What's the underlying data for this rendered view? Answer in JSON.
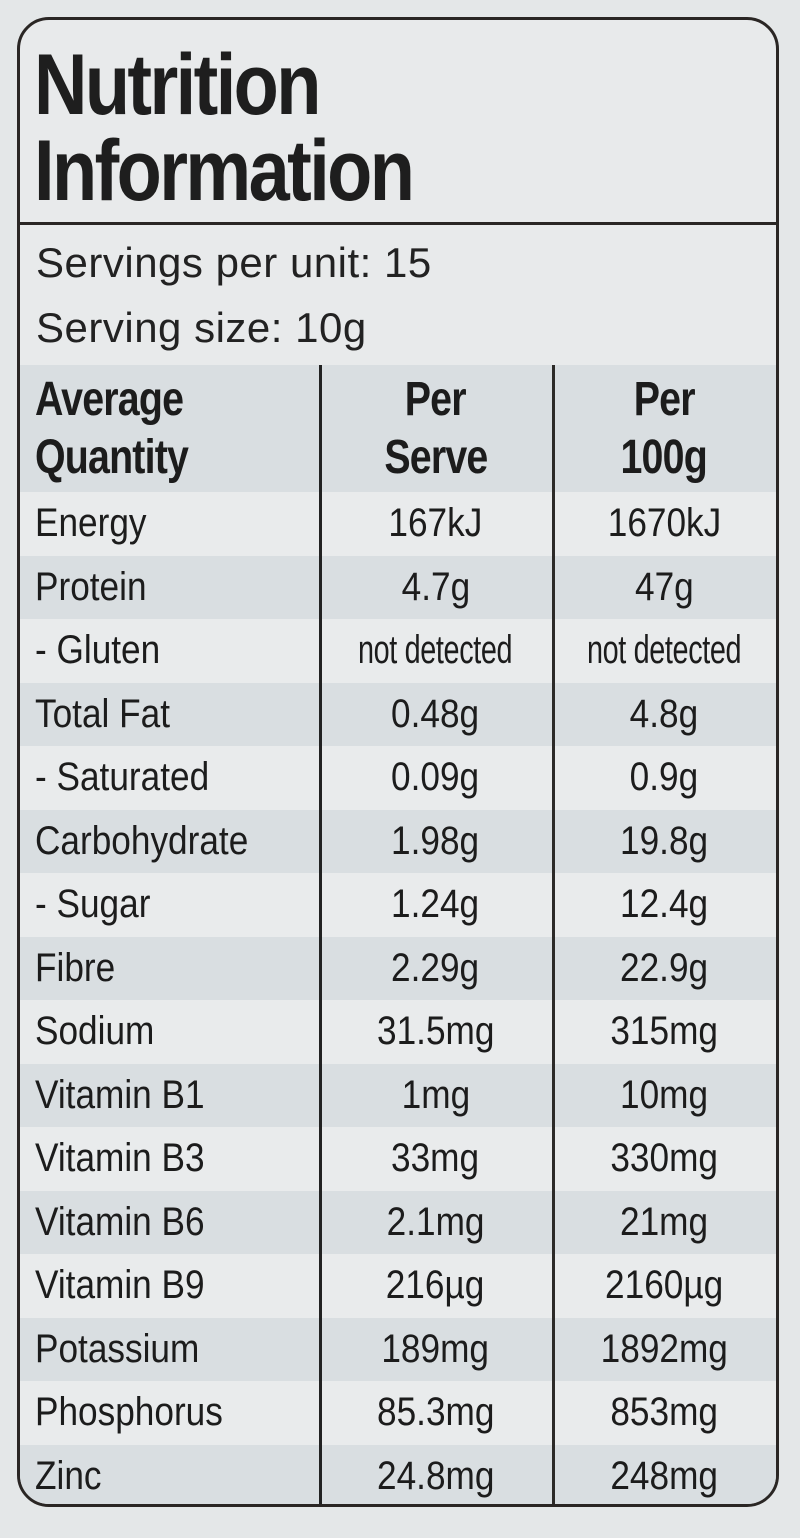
{
  "title": {
    "line1": "Nutrition",
    "line2": "Information"
  },
  "servings": {
    "per_unit": "Servings per unit: 15",
    "size": "Serving size: 10g"
  },
  "table": {
    "headers": {
      "name": [
        "Average",
        "Quantity"
      ],
      "per_serve": [
        "Per",
        "Serve"
      ],
      "per_100g": [
        "Per",
        "100g"
      ]
    },
    "rows": [
      {
        "name": "Energy",
        "per_serve": "167kJ",
        "per_100g": "1670kJ"
      },
      {
        "name": "Protein",
        "per_serve": "4.7g",
        "per_100g": "47g"
      },
      {
        "name": "- Gluten",
        "per_serve": "not detected",
        "per_100g": "not detected"
      },
      {
        "name": "Total Fat",
        "per_serve": "0.48g",
        "per_100g": "4.8g"
      },
      {
        "name": "- Saturated",
        "per_serve": "0.09g",
        "per_100g": "0.9g"
      },
      {
        "name": "Carbohydrate",
        "per_serve": "1.98g",
        "per_100g": "19.8g"
      },
      {
        "name": "- Sugar",
        "per_serve": "1.24g",
        "per_100g": "12.4g"
      },
      {
        "name": "Fibre",
        "per_serve": "2.29g",
        "per_100g": "22.9g"
      },
      {
        "name": "Sodium",
        "per_serve": "31.5mg",
        "per_100g": "315mg"
      },
      {
        "name": "Vitamin B1",
        "per_serve": "1mg",
        "per_100g": "10mg"
      },
      {
        "name": "Vitamin B3",
        "per_serve": "33mg",
        "per_100g": "330mg"
      },
      {
        "name": "Vitamin B6",
        "per_serve": "2.1mg",
        "per_100g": "21mg"
      },
      {
        "name": "Vitamin B9",
        "per_serve": "216µg",
        "per_100g": "2160µg"
      },
      {
        "name": "Potassium",
        "per_serve": "189mg",
        "per_100g": "1892mg"
      },
      {
        "name": "Phosphorus",
        "per_serve": "85.3mg",
        "per_100g": "853mg"
      },
      {
        "name": "Zinc",
        "per_serve": "24.8mg",
        "per_100g": "248mg"
      }
    ]
  },
  "colors": {
    "background": "#e4e7e8",
    "row_shaded": "#d9dee1",
    "row_light": "#e9ebec",
    "border": "#2a2624",
    "text": "#1c1c1c"
  }
}
